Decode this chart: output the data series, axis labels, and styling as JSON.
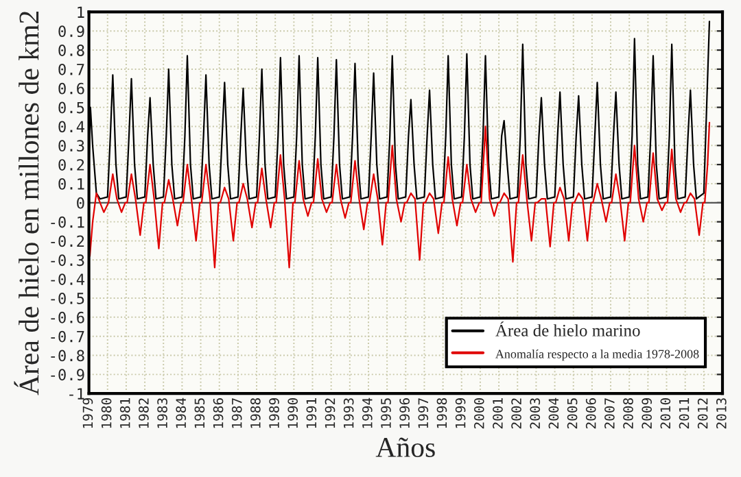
{
  "chart_data": {
    "type": "line",
    "xlabel": "Años",
    "ylabel": "Área de hielo en millones de km2",
    "xlim": [
      1979,
      2013
    ],
    "xticks": [
      1979,
      1980,
      1981,
      1982,
      1983,
      1984,
      1985,
      1986,
      1987,
      1988,
      1989,
      1990,
      1991,
      1992,
      1993,
      1994,
      1995,
      1996,
      1997,
      1998,
      1999,
      2000,
      2001,
      2002,
      2003,
      2004,
      2005,
      2006,
      2007,
      2008,
      2009,
      2010,
      2011,
      2012,
      2013
    ],
    "ylim": [
      -1,
      1
    ],
    "yticks": [
      -1,
      -0.9,
      -0.8,
      -0.7,
      -0.6,
      -0.5,
      -0.4,
      -0.3,
      -0.2,
      -0.1,
      0,
      0.1,
      0.2,
      0.3,
      0.4,
      0.5,
      0.6,
      0.7,
      0.8,
      0.9,
      1
    ],
    "grid": true,
    "legend": "bottom right",
    "ref_lines": [
      {
        "axis": "y",
        "value": 0,
        "color": "#555555"
      }
    ],
    "series": [
      {
        "name": "Área de hielo marino",
        "color": "#000000",
        "x": [
          1979.0,
          1979.08,
          1979.2,
          1979.4,
          1979.6,
          1980.0,
          1980.15,
          1980.28,
          1980.45,
          1980.6,
          1981.0,
          1981.15,
          1981.28,
          1981.45,
          1981.6,
          1982.0,
          1982.15,
          1982.28,
          1982.45,
          1982.6,
          1983.0,
          1983.15,
          1983.28,
          1983.45,
          1983.6,
          1984.0,
          1984.15,
          1984.28,
          1984.45,
          1984.6,
          1985.0,
          1985.15,
          1985.28,
          1985.45,
          1985.6,
          1986.0,
          1986.15,
          1986.28,
          1986.45,
          1986.6,
          1987.0,
          1987.15,
          1987.28,
          1987.45,
          1987.6,
          1988.0,
          1988.15,
          1988.28,
          1988.45,
          1988.6,
          1989.0,
          1989.15,
          1989.28,
          1989.45,
          1989.6,
          1990.0,
          1990.15,
          1990.28,
          1990.45,
          1990.6,
          1991.0,
          1991.15,
          1991.28,
          1991.45,
          1991.6,
          1992.0,
          1992.15,
          1992.28,
          1992.45,
          1992.6,
          1993.0,
          1993.15,
          1993.28,
          1993.45,
          1993.6,
          1994.0,
          1994.15,
          1994.28,
          1994.45,
          1994.6,
          1995.0,
          1995.15,
          1995.28,
          1995.45,
          1995.6,
          1996.0,
          1996.15,
          1996.28,
          1996.45,
          1996.6,
          1997.0,
          1997.15,
          1997.28,
          1997.45,
          1997.6,
          1998.0,
          1998.15,
          1998.28,
          1998.45,
          1998.6,
          1999.0,
          1999.15,
          1999.28,
          1999.45,
          1999.6,
          2000.0,
          2000.15,
          2000.28,
          2000.45,
          2000.6,
          2001.0,
          2001.15,
          2001.28,
          2001.45,
          2001.6,
          2002.0,
          2002.15,
          2002.28,
          2002.45,
          2002.6,
          2003.0,
          2003.15,
          2003.28,
          2003.45,
          2003.6,
          2004.0,
          2004.15,
          2004.28,
          2004.45,
          2004.6,
          2005.0,
          2005.15,
          2005.28,
          2005.45,
          2005.6,
          2006.0,
          2006.15,
          2006.28,
          2006.45,
          2006.6,
          2007.0,
          2007.15,
          2007.28,
          2007.45,
          2007.6,
          2008.0,
          2008.15,
          2008.28,
          2008.45,
          2008.6,
          2009.0,
          2009.15,
          2009.28,
          2009.45,
          2009.6,
          2010.0,
          2010.15,
          2010.28,
          2010.45,
          2010.6,
          2011.0,
          2011.15,
          2011.28,
          2011.45,
          2011.6,
          2012.0,
          2012.15,
          2012.3
        ],
        "values": [
          0.2,
          0.5,
          0.3,
          0.05,
          0.02,
          0.03,
          0.35,
          0.67,
          0.2,
          0.02,
          0.03,
          0.35,
          0.65,
          0.2,
          0.02,
          0.03,
          0.35,
          0.55,
          0.2,
          0.02,
          0.03,
          0.35,
          0.7,
          0.2,
          0.02,
          0.03,
          0.35,
          0.77,
          0.2,
          0.02,
          0.03,
          0.35,
          0.67,
          0.2,
          0.02,
          0.03,
          0.35,
          0.63,
          0.2,
          0.02,
          0.03,
          0.35,
          0.6,
          0.2,
          0.02,
          0.03,
          0.35,
          0.7,
          0.2,
          0.02,
          0.03,
          0.35,
          0.76,
          0.2,
          0.02,
          0.03,
          0.35,
          0.77,
          0.2,
          0.02,
          0.03,
          0.35,
          0.76,
          0.2,
          0.02,
          0.03,
          0.35,
          0.75,
          0.2,
          0.02,
          0.03,
          0.35,
          0.73,
          0.2,
          0.02,
          0.03,
          0.35,
          0.68,
          0.2,
          0.02,
          0.03,
          0.35,
          0.77,
          0.2,
          0.02,
          0.03,
          0.35,
          0.54,
          0.2,
          0.02,
          0.03,
          0.35,
          0.59,
          0.2,
          0.02,
          0.03,
          0.35,
          0.77,
          0.2,
          0.02,
          0.03,
          0.35,
          0.78,
          0.2,
          0.02,
          0.03,
          0.35,
          0.77,
          0.2,
          0.02,
          0.03,
          0.35,
          0.43,
          0.2,
          0.02,
          0.03,
          0.35,
          0.83,
          0.2,
          0.02,
          0.03,
          0.35,
          0.55,
          0.2,
          0.02,
          0.03,
          0.35,
          0.58,
          0.2,
          0.02,
          0.03,
          0.35,
          0.56,
          0.2,
          0.02,
          0.03,
          0.35,
          0.63,
          0.2,
          0.02,
          0.03,
          0.35,
          0.58,
          0.2,
          0.02,
          0.03,
          0.35,
          0.86,
          0.2,
          0.02,
          0.03,
          0.35,
          0.77,
          0.2,
          0.02,
          0.03,
          0.35,
          0.83,
          0.2,
          0.02,
          0.03,
          0.35,
          0.59,
          0.2,
          0.02,
          0.05,
          0.5,
          0.95
        ]
      },
      {
        "name": "Anomalía respecto a la media 1978-2008",
        "color": "#e00000",
        "x": [
          1979.0,
          1979.05,
          1979.2,
          1979.4,
          1979.6,
          1979.8,
          1980.05,
          1980.28,
          1980.5,
          1980.75,
          1980.95,
          1981.05,
          1981.28,
          1981.5,
          1981.75,
          1981.95,
          1982.05,
          1982.28,
          1982.5,
          1982.75,
          1982.95,
          1983.05,
          1983.28,
          1983.5,
          1983.75,
          1983.95,
          1984.05,
          1984.28,
          1984.5,
          1984.75,
          1984.95,
          1985.05,
          1985.28,
          1985.5,
          1985.75,
          1985.95,
          1986.05,
          1986.28,
          1986.5,
          1986.75,
          1986.95,
          1987.05,
          1987.28,
          1987.5,
          1987.75,
          1987.95,
          1988.05,
          1988.28,
          1988.5,
          1988.75,
          1988.95,
          1989.05,
          1989.28,
          1989.5,
          1989.75,
          1989.95,
          1990.05,
          1990.28,
          1990.5,
          1990.75,
          1990.95,
          1991.05,
          1991.28,
          1991.5,
          1991.75,
          1991.95,
          1992.05,
          1992.28,
          1992.5,
          1992.75,
          1992.95,
          1993.05,
          1993.28,
          1993.5,
          1993.75,
          1993.95,
          1994.05,
          1994.28,
          1994.5,
          1994.75,
          1994.95,
          1995.05,
          1995.28,
          1995.5,
          1995.75,
          1995.95,
          1996.05,
          1996.28,
          1996.5,
          1996.75,
          1996.95,
          1997.05,
          1997.28,
          1997.5,
          1997.75,
          1997.95,
          1998.05,
          1998.28,
          1998.5,
          1998.75,
          1998.95,
          1999.05,
          1999.28,
          1999.5,
          1999.75,
          1999.95,
          2000.05,
          2000.28,
          2000.5,
          2000.75,
          2000.95,
          2001.05,
          2001.28,
          2001.5,
          2001.75,
          2001.95,
          2002.05,
          2002.28,
          2002.5,
          2002.75,
          2002.95,
          2003.05,
          2003.28,
          2003.5,
          2003.75,
          2003.95,
          2004.05,
          2004.28,
          2004.5,
          2004.75,
          2004.95,
          2005.05,
          2005.28,
          2005.5,
          2005.75,
          2005.95,
          2006.05,
          2006.28,
          2006.5,
          2006.75,
          2006.95,
          2007.05,
          2007.28,
          2007.5,
          2007.75,
          2007.95,
          2008.05,
          2008.28,
          2008.5,
          2008.75,
          2008.95,
          2009.05,
          2009.28,
          2009.5,
          2009.75,
          2009.95,
          2010.05,
          2010.28,
          2010.5,
          2010.75,
          2010.95,
          2011.05,
          2011.28,
          2011.5,
          2011.75,
          2011.95,
          2012.05,
          2012.2,
          2012.3
        ],
        "values": [
          -0.1,
          -0.28,
          -0.1,
          0.05,
          0.0,
          -0.05,
          0.0,
          0.15,
          0.02,
          -0.05,
          0.0,
          0.0,
          0.15,
          0.02,
          -0.17,
          0.0,
          0.0,
          0.2,
          0.02,
          -0.24,
          0.0,
          0.0,
          0.12,
          0.02,
          -0.12,
          0.0,
          0.0,
          0.2,
          0.02,
          -0.2,
          0.0,
          0.0,
          0.2,
          0.02,
          -0.34,
          0.0,
          0.0,
          0.08,
          0.02,
          -0.2,
          0.0,
          0.0,
          0.1,
          0.02,
          -0.13,
          0.0,
          0.0,
          0.18,
          0.02,
          -0.13,
          0.0,
          0.0,
          0.25,
          0.02,
          -0.34,
          0.0,
          0.0,
          0.22,
          0.02,
          -0.07,
          0.0,
          0.0,
          0.23,
          0.02,
          -0.05,
          0.0,
          0.0,
          0.2,
          0.02,
          -0.08,
          0.0,
          0.0,
          0.22,
          0.02,
          -0.14,
          0.0,
          0.0,
          0.15,
          0.02,
          -0.22,
          0.0,
          0.0,
          0.3,
          0.02,
          -0.1,
          0.0,
          0.0,
          0.05,
          0.02,
          -0.3,
          0.0,
          0.0,
          0.05,
          0.02,
          -0.16,
          0.0,
          0.0,
          0.24,
          0.02,
          -0.12,
          0.0,
          0.0,
          0.2,
          0.02,
          -0.05,
          0.0,
          0.0,
          0.4,
          0.02,
          -0.07,
          0.0,
          0.0,
          0.05,
          0.02,
          -0.31,
          0.0,
          0.0,
          0.25,
          0.02,
          -0.2,
          0.0,
          0.0,
          0.02,
          0.02,
          -0.23,
          0.0,
          0.0,
          0.08,
          0.02,
          -0.2,
          0.0,
          0.0,
          0.05,
          0.02,
          -0.2,
          0.0,
          0.0,
          0.1,
          0.02,
          -0.1,
          0.0,
          0.0,
          0.15,
          0.02,
          -0.2,
          0.0,
          0.0,
          0.3,
          0.02,
          -0.1,
          0.0,
          0.0,
          0.26,
          0.02,
          -0.04,
          0.0,
          0.0,
          0.28,
          0.02,
          -0.05,
          0.0,
          0.0,
          0.05,
          0.02,
          -0.17,
          0.0,
          0.0,
          0.2,
          0.42
        ]
      }
    ]
  }
}
